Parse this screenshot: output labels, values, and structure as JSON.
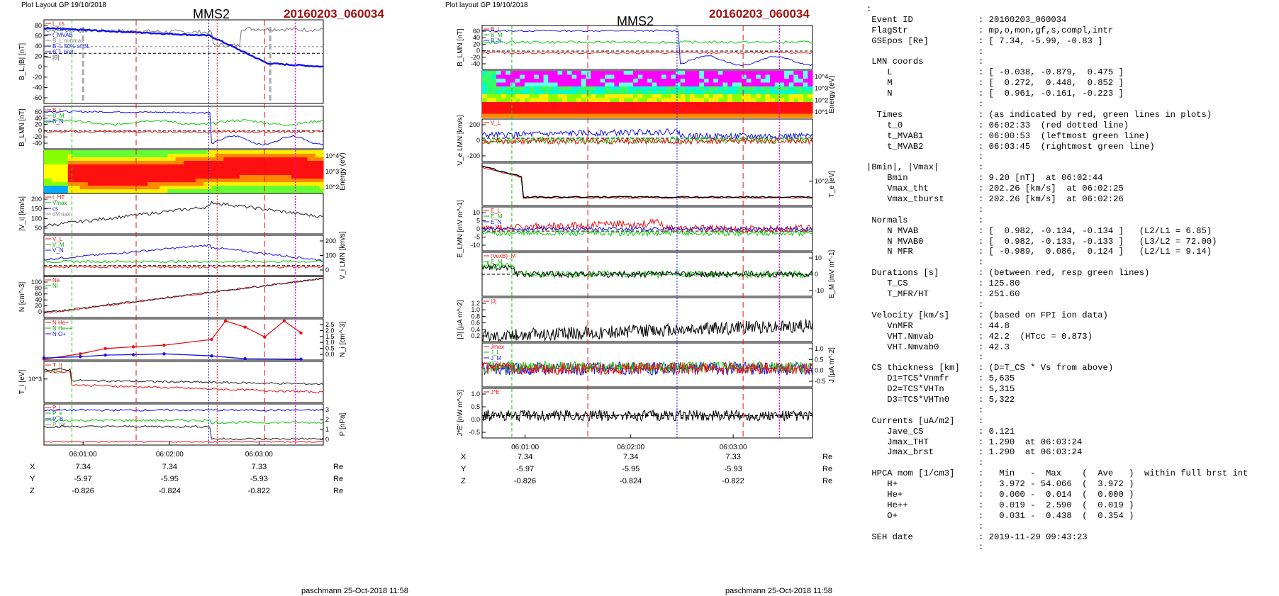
{
  "page": {
    "left_header": "Plot Layout GP 19/10/2018",
    "mid_header": "Plot layout GP 19/10/2018",
    "title": "MMS2",
    "event": "20160203_060034",
    "footer_left": "paschmann 25-Oct-2018 11:58",
    "footer_mid": "paschmann 25-Oct-2018 11:58"
  },
  "colors": {
    "blue": "#1010ee",
    "red": "#ee1010",
    "green": "#10cc10",
    "magenta": "#ee00ee",
    "event_red": "#a01010"
  },
  "left_plot": {
    "time_labels": [
      "06:01:00",
      "06:02:00",
      "06:03:00"
    ],
    "coords": {
      "names": [
        "X",
        "Y",
        "Z"
      ],
      "unit": "Re",
      "values": [
        [
          "7.34",
          "7.34",
          "7.33"
        ],
        [
          "-5.97",
          "-5.95",
          "-5.93"
        ],
        [
          "-0.826",
          "-0.824",
          "-0.822"
        ]
      ]
    },
    "panels": [
      {
        "ylabel": "B_L,|B| [nT]",
        "side": "left",
        "ticks": [
          "80",
          "60",
          "40",
          "20",
          "0",
          "-20",
          "-40",
          "-60"
        ],
        "legend": [
          "L_cs",
          "t_HT",
          "t_MVAB",
          "B_L minmax",
          "B_L 50% of BL",
          "B_L brst",
          "|B|"
        ]
      },
      {
        "ylabel": "B_LMN [nT]",
        "side": "left",
        "ticks": [
          "60",
          "40",
          "20",
          "0",
          "-20",
          "-40"
        ],
        "legend": [
          "B_L",
          "B_M",
          "B_N"
        ]
      },
      {
        "ylabel": "Energy (eV)",
        "side": "right",
        "ticks": [
          "10^4",
          "10^3",
          "10^2"
        ],
        "legend": []
      },
      {
        "ylabel": "|V_i| [km/s]",
        "side": "left",
        "ticks": [
          "200",
          "150",
          "100",
          "50"
        ],
        "legend": [
          "t_HT",
          "Vmax",
          "cs",
          "dVmax"
        ]
      },
      {
        "ylabel": "V_i LMN [km/s]",
        "side": "right",
        "ticks": [
          "200",
          "100",
          "0"
        ],
        "legend": [
          "V_L",
          "V_M",
          "V_N"
        ]
      },
      {
        "ylabel": "N [cm^-3]",
        "side": "left",
        "ticks": [
          "100",
          "80",
          "60",
          "40",
          "20",
          "0"
        ],
        "legend": [
          "Ne",
          "Ni"
        ]
      },
      {
        "ylabel": "N_i [cm^-3]",
        "side": "right",
        "ticks": [
          "2.5",
          "2.0",
          "1.5",
          "1.0",
          "0.5",
          "0.0"
        ],
        "legend": [
          "N He+",
          "N He++",
          "N O+"
        ]
      },
      {
        "ylabel": "T_i [eV]",
        "side": "left",
        "ticks": [
          "10^3"
        ],
        "legend": [
          "T_||",
          "T_⊥"
        ]
      },
      {
        "ylabel": "P [nPa]",
        "side": "right",
        "ticks": [
          "3",
          "2",
          "1",
          "0"
        ],
        "legend": [
          "P_i",
          "P_e",
          "P_B",
          "P_tot"
        ]
      }
    ]
  },
  "mid_plot": {
    "time_labels": [
      "06:01:00",
      "06:02:00",
      "06:03:00"
    ],
    "coords": {
      "names": [
        "X",
        "Y",
        "Z"
      ],
      "unit": "Re",
      "values": [
        [
          "7.34",
          "7.34",
          "7.33"
        ],
        [
          "-5.97",
          "-5.95",
          "-5.93"
        ],
        [
          "-0.826",
          "-0.824",
          "-0.822"
        ]
      ]
    },
    "panels": [
      {
        "ylabel": "B_LMN [nT]",
        "side": "left",
        "ticks": [
          "60",
          "40",
          "20",
          "0",
          "-20",
          "-40"
        ],
        "legend": [
          "B_L",
          "B_M",
          "B_N"
        ]
      },
      {
        "ylabel": "Energy (eV)",
        "side": "right",
        "ticks": [
          "10^4",
          "10^3",
          "10^2",
          "10^1"
        ],
        "legend": []
      },
      {
        "ylabel": "V_e LMN [km/s]",
        "side": "left",
        "ticks": [
          "200",
          "0",
          "-200"
        ],
        "legend": [
          "V_L"
        ]
      },
      {
        "ylabel": "T_e [eV]",
        "side": "right",
        "ticks": [
          "10^2"
        ],
        "legend": []
      },
      {
        "ylabel": "E_LMN [mV m^-1]",
        "side": "left",
        "ticks": [
          "10",
          "5",
          "0",
          "-5",
          "-10"
        ],
        "legend": [
          "E_L",
          "E_M",
          "E_N"
        ]
      },
      {
        "ylabel": "E_M [mV m^-1]",
        "side": "right",
        "ticks": [
          "10",
          "0",
          "-10"
        ],
        "legend": [
          "(VexB)_M",
          "E_M"
        ]
      },
      {
        "ylabel": "|J| [μA m^-2]",
        "side": "left",
        "ticks": [
          "1.2",
          "1.0",
          "0.8",
          "0.6",
          "0.4",
          "0.2"
        ],
        "legend": [
          "|J|"
        ]
      },
      {
        "ylabel": "J [μA m^-2]",
        "side": "right",
        "ticks": [
          "1.0",
          "0.5",
          "0.0",
          "-0.5"
        ],
        "legend": [
          "Jmax",
          "J_L",
          "J_M",
          "J_N"
        ]
      },
      {
        "ylabel": "J*E' [nW m^-3]",
        "side": "left",
        "ticks": [
          "1.0",
          "0.5",
          "0.0",
          "-0.5"
        ],
        "legend": [
          "J*E'"
        ]
      }
    ]
  },
  "summary": [
    [
      ":",
      ""
    ],
    [
      " Event ID",
      "20160203_060034"
    ],
    [
      " FlagStr",
      "mp,o,mon,gf,s,compl,intr"
    ],
    [
      " GSEpos [Re]",
      "[ 7.34, -5.99, -0.83 ]"
    ],
    [
      "",
      ""
    ],
    [
      " LMN coords",
      ""
    ],
    [
      "    L",
      "[ -0.038, -0.879,  0.475 ]"
    ],
    [
      "    M",
      "[  0.272,  0.448,  0.852 ]"
    ],
    [
      "    N",
      "[  0.961, -0.161, -0.223 ]"
    ],
    [
      "",
      ""
    ],
    [
      "  Times",
      "(as indicated by red, green lines in plots)"
    ],
    [
      "    t_0",
      "06:02:33  (red dotted line)"
    ],
    [
      "    t_MVAB1",
      "06:00:53  (leftmost green line)"
    ],
    [
      "    t_MVAB2",
      "06:03:45  (rightmost green line)"
    ],
    [
      "",
      ""
    ],
    [
      "|Bmin|, |Vmax|",
      ""
    ],
    [
      "    Bmin",
      "9.20 [nT]  at 06:02:44"
    ],
    [
      "    Vmax_tht",
      "202.26 [km/s]  at 06:02:25"
    ],
    [
      "    Vmax_tburst",
      "202.26 [km/s]  at 06:02:26"
    ],
    [
      "",
      ""
    ],
    [
      " Normals",
      ""
    ],
    [
      "    N MVAB",
      "[  0.982, -0.134, -0.134 ]   (L2/L1 = 6.85)"
    ],
    [
      "    N MVAB0",
      "[  0.982, -0.133, -0.133 ]   (L3/L2 = 72.00)"
    ],
    [
      "    N MFR",
      "[ -0.989,  0.086,  0.124 ]   (L2/L1 = 9.14)"
    ],
    [
      "",
      ""
    ],
    [
      " Durations [s]",
      "(between red, resp green lines)"
    ],
    [
      "    T_CS",
      "125.80"
    ],
    [
      "    T_MFR/HT",
      "251.60"
    ],
    [
      "",
      ""
    ],
    [
      " Velocity [km/s]",
      "(based on FPI ion data)"
    ],
    [
      "    VnMFR",
      "44.8"
    ],
    [
      "    VHT.Nmvab",
      "42.2  (HTcc = 0.873)"
    ],
    [
      "    VHT.Nmvab0",
      "42.3"
    ],
    [
      "",
      ""
    ],
    [
      " CS thickness [km]",
      "(D=T_CS * Vs from above)"
    ],
    [
      "    D1=TCS*Vnmfr",
      "5,635"
    ],
    [
      "    D2=TCS*VHTn",
      "5,315"
    ],
    [
      "    D3=TCS*VHTn0",
      "5,322"
    ],
    [
      "",
      ""
    ],
    [
      " Currents [uA/m2]",
      ""
    ],
    [
      "    Jave_CS",
      "0.121"
    ],
    [
      "    Jmax_THT",
      "1.290  at 06:03:24"
    ],
    [
      "    Jmax_brst",
      "1.290  at 06:03:24"
    ],
    [
      "",
      ""
    ],
    [
      " HPCA mom [1/cm3]",
      "  Min   -  Max    (  Ave   )  within full brst int"
    ],
    [
      "    H+",
      "  3.972 - 54.066  (  3.972 )"
    ],
    [
      "    He+",
      "  0.000 -  0.014  (  0.000 )"
    ],
    [
      "    He++",
      "  0.019 -  2.590  (  0.019 )"
    ],
    [
      "    O+",
      "  0.031 -  0.438  (  0.354 )"
    ],
    [
      "",
      ""
    ],
    [
      " SEH date",
      "2019-11-29 09:43:23"
    ],
    [
      "",
      ""
    ]
  ],
  "chart_data": [
    {
      "type": "line",
      "title": "MMS2 20160203_060034",
      "xlabel": "",
      "x_ticks": [
        "06:01:00",
        "06:02:00",
        "06:03:00"
      ],
      "series": [
        {
          "name": "B_L brst",
          "x": [
            "06:00:34",
            "06:00:53",
            "06:01:15",
            "06:01:45",
            "06:02:10",
            "06:02:25",
            "06:02:33",
            "06:02:44",
            "06:02:55",
            "06:03:05",
            "06:03:15",
            "06:03:24",
            "06:03:45",
            "06:04:00"
          ],
          "values": [
            65,
            72,
            62,
            52,
            42,
            30,
            5,
            -20,
            -40,
            -50,
            -30,
            -10,
            -20,
            -25
          ]
        },
        {
          "name": "|B|",
          "x": [
            "06:00:34",
            "06:01:15",
            "06:02:00",
            "06:02:33",
            "06:02:44",
            "06:03:05",
            "06:03:24",
            "06:03:45",
            "06:04:00"
          ],
          "values": [
            68,
            63,
            55,
            45,
            30,
            40,
            45,
            35,
            40
          ]
        },
        {
          "name": "|V_i|",
          "x": [
            "06:00:34",
            "06:00:53",
            "06:01:15",
            "06:01:45",
            "06:02:10",
            "06:02:26",
            "06:02:45",
            "06:03:15",
            "06:03:45",
            "06:04:00"
          ],
          "values": [
            60,
            85,
            100,
            120,
            150,
            202,
            170,
            130,
            85,
            70
          ]
        },
        {
          "name": "Ne",
          "x": [
            "06:00:34",
            "06:00:53",
            "06:01:15",
            "06:01:45",
            "06:02:10",
            "06:02:26",
            "06:02:33",
            "06:03:05",
            "06:03:24",
            "06:03:45",
            "06:04:00"
          ],
          "values": [
            5,
            12,
            20,
            28,
            35,
            45,
            60,
            65,
            75,
            85,
            95
          ]
        },
        {
          "name": "N He++",
          "x": [
            "06:00:34",
            "06:01:00",
            "06:01:30",
            "06:02:00",
            "06:02:26",
            "06:02:40",
            "06:02:55",
            "06:03:10",
            "06:03:24",
            "06:03:40"
          ],
          "values": [
            0.0,
            0.4,
            0.75,
            0.95,
            1.3,
            2.5,
            2.0,
            1.4,
            2.5,
            1.7
          ]
        },
        {
          "name": "N O+",
          "x": [
            "06:00:34",
            "06:01:00",
            "06:01:30",
            "06:02:00",
            "06:02:26",
            "06:02:40",
            "06:03:10",
            "06:03:40"
          ],
          "values": [
            0.1,
            0.2,
            0.3,
            0.35,
            0.3,
            0.1,
            0.05,
            0.03
          ]
        }
      ]
    }
  ]
}
